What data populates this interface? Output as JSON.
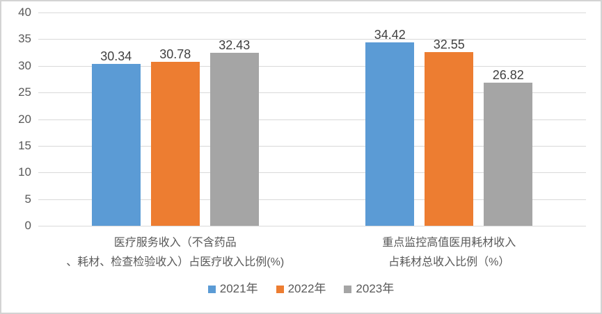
{
  "chart_data": {
    "type": "bar",
    "title": "",
    "categories": [
      "医疗服务收入（不含药品\n、耗材、检查检验收入）占医疗收入比例(%)",
      "重点监控高值医用耗材收入\n占耗材总收入比例（%）"
    ],
    "series": [
      {
        "name": "2021年",
        "color": "#5B9BD5",
        "values": [
          30.34,
          34.42
        ]
      },
      {
        "name": "2022年",
        "color": "#ED7D31",
        "values": [
          30.78,
          32.55
        ]
      },
      {
        "name": "2023年",
        "color": "#A5A5A5",
        "values": [
          32.43,
          26.82
        ]
      }
    ],
    "y_axis": {
      "min": 0,
      "max": 40,
      "step": 5,
      "ticks": [
        0,
        5,
        10,
        15,
        20,
        25,
        30,
        35,
        40
      ]
    },
    "grid": true,
    "legend_position": "bottom",
    "value_label_decimals": 2,
    "colors": {
      "grid": "#D9D9D9",
      "axis_text": "#595959",
      "value_label": "#404040",
      "category_text": "#595959",
      "frame_border": "#D3D3D3",
      "background": "#FFFFFF"
    }
  }
}
